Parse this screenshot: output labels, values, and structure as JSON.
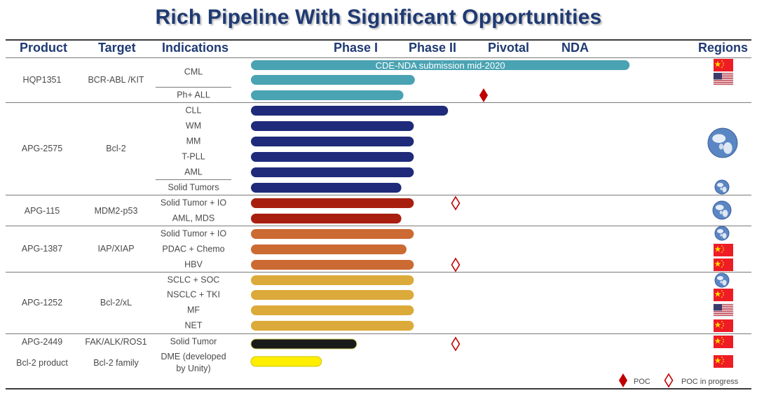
{
  "title": "Rich Pipeline With Significant Opportunities",
  "headers": {
    "product": "Product",
    "target": "Target",
    "indications": "Indications",
    "phase1": "Phase I",
    "phase2": "Phase II",
    "pivotal": "Pivotal",
    "nda": "NDA",
    "regions": "Regions"
  },
  "products": [
    {
      "name": "HQP1351",
      "target": "BCR-ABL /KIT"
    },
    {
      "name": "APG-2575",
      "target": "Bcl-2"
    },
    {
      "name": "APG-115",
      "target": "MDM2-p53"
    },
    {
      "name": "APG-1387",
      "target": "IAP/XIAP"
    },
    {
      "name": "APG-1252",
      "target": "Bcl-2/xL"
    },
    {
      "name": "APG-2449",
      "target": "FAK/ALK/ROS1"
    },
    {
      "name": "Bcl-2 product",
      "target": "Bcl-2 family"
    }
  ],
  "indications": [
    {
      "label": "CML"
    },
    {
      "label": "Ph+ ALL"
    },
    {
      "label": "CLL"
    },
    {
      "label": "WM"
    },
    {
      "label": "MM"
    },
    {
      "label": "T-PLL"
    },
    {
      "label": "AML"
    },
    {
      "label": "Solid Tumors"
    },
    {
      "label": "Solid Tumor + IO"
    },
    {
      "label": "AML, MDS"
    },
    {
      "label": "Solid Tumor + IO"
    },
    {
      "label": "PDAC + Chemo"
    },
    {
      "label": "HBV"
    },
    {
      "label": "SCLC + SOC"
    },
    {
      "label": "NSCLC + TKI"
    },
    {
      "label": "MF"
    },
    {
      "label": "NET"
    },
    {
      "label": "Solid Tumor"
    },
    {
      "label": "DME (developed by Unity)"
    }
  ],
  "chart_data": {
    "type": "bar",
    "orientation": "horizontal",
    "title": "Rich Pipeline With Significant Opportunities",
    "stages": [
      "Phase I",
      "Phase II",
      "Pivotal",
      "NDA"
    ],
    "value_scale": "stage progress: 0 = start of Phase I, 4 = end of NDA",
    "xlim": [
      0,
      4
    ],
    "bars": [
      {
        "product": "HQP1351",
        "indication": "CML",
        "value": 3.65,
        "color": "#4aa3b3",
        "label": "CDE-NDA submission mid-2020",
        "region": [
          "cn-flag"
        ]
      },
      {
        "product": "HQP1351",
        "indication": "CML",
        "value": 1.58,
        "color": "#4aa3b3",
        "region": [
          "us-flag"
        ]
      },
      {
        "product": "HQP1351",
        "indication": "Ph+ ALL",
        "value": 1.47,
        "color": "#4aa3b3"
      },
      {
        "product": "APG-2575",
        "indication": "CLL",
        "value": 1.9,
        "color": "#1f2a7a",
        "poc": "POC"
      },
      {
        "product": "APG-2575",
        "indication": "WM",
        "value": 1.57,
        "color": "#1f2a7a"
      },
      {
        "product": "APG-2575",
        "indication": "MM",
        "value": 1.57,
        "color": "#1f2a7a"
      },
      {
        "product": "APG-2575",
        "indication": "T-PLL",
        "value": 1.57,
        "color": "#1f2a7a"
      },
      {
        "product": "APG-2575",
        "indication": "AML",
        "value": 1.57,
        "color": "#1f2a7a"
      },
      {
        "product": "APG-2575",
        "indication": "Solid Tumors",
        "value": 1.45,
        "color": "#1f2a7a",
        "region": [
          "globe"
        ]
      },
      {
        "product": "APG-115",
        "indication": "Solid Tumor + IO",
        "value": 1.57,
        "color": "#a81f10",
        "poc": "POC in progress",
        "region": [
          "globe"
        ]
      },
      {
        "product": "APG-115",
        "indication": "AML, MDS",
        "value": 1.45,
        "color": "#a81f10"
      },
      {
        "product": "APG-1387",
        "indication": "Solid Tumor + IO",
        "value": 1.57,
        "color": "#cc6a33",
        "region": [
          "globe"
        ]
      },
      {
        "product": "APG-1387",
        "indication": "PDAC + Chemo",
        "value": 1.5,
        "color": "#cc6a33",
        "region": [
          "cn-flag"
        ]
      },
      {
        "product": "APG-1387",
        "indication": "HBV",
        "value": 1.57,
        "color": "#cc6a33",
        "poc": "POC in progress",
        "region": [
          "cn-flag"
        ]
      },
      {
        "product": "APG-1252",
        "indication": "SCLC + SOC",
        "value": 1.57,
        "color": "#dcaa3a",
        "region": [
          "globe"
        ]
      },
      {
        "product": "APG-1252",
        "indication": "NSCLC + TKI",
        "value": 1.57,
        "color": "#dcaa3a",
        "region": [
          "cn-flag"
        ]
      },
      {
        "product": "APG-1252",
        "indication": "MF",
        "value": 1.57,
        "color": "#dcaa3a",
        "region": [
          "us-flag"
        ]
      },
      {
        "product": "APG-1252",
        "indication": "NET",
        "value": 1.57,
        "color": "#dcaa3a",
        "region": [
          "cn-flag"
        ]
      },
      {
        "product": "APG-2449",
        "indication": "Solid Tumor",
        "value": 1.02,
        "color": "#1a1a1a",
        "poc": "POC in progress",
        "region": [
          "cn-flag"
        ]
      },
      {
        "product": "Bcl-2 product",
        "indication": "DME (developed by Unity)",
        "value": 0.68,
        "color": "#ffee00",
        "region": [
          "cn-flag"
        ]
      }
    ],
    "legend": [
      {
        "icon": "filled-diamond-icon",
        "label": "POC",
        "color": "#c00000"
      },
      {
        "icon": "open-diamond-icon",
        "label": "POC in progress",
        "color": "#c00000"
      }
    ]
  }
}
